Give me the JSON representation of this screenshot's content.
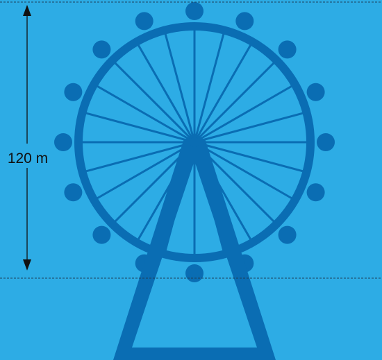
{
  "height_label": "120 m",
  "colors": {
    "sky": "#2DACE5",
    "wheel": "#0A6DB3",
    "dimension": "#111111",
    "guide_line": "#1D3F5A"
  },
  "wheel": {
    "gondola_count": 16,
    "spoke_count": 24
  }
}
